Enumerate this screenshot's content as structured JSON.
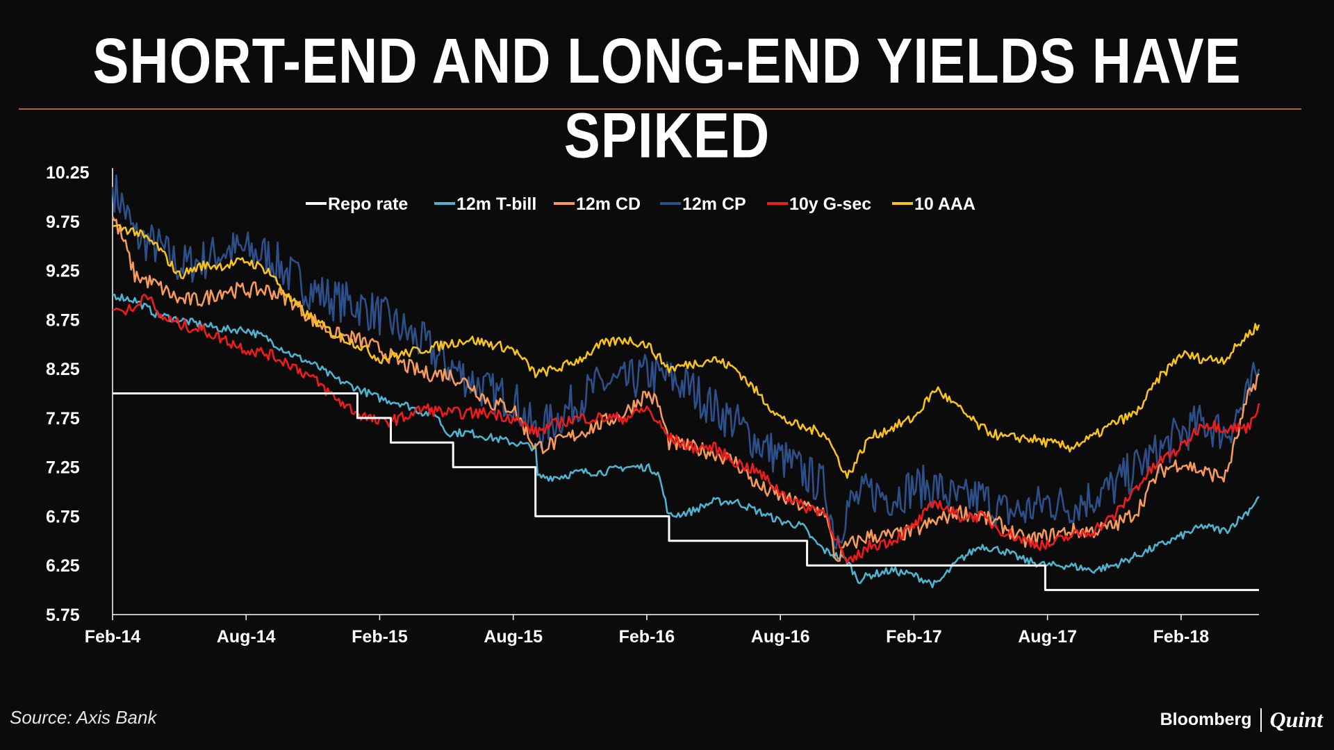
{
  "header": {
    "title": "SHORT-END AND LONG-END YIELDS HAVE SPIKED"
  },
  "footer": {
    "source": "Source: Axis Bank",
    "brand_left": "Bloomberg",
    "brand_right": "Quint"
  },
  "colors": {
    "background": "#0b0b0b",
    "rule": "#b55f3a",
    "axis": "#ffffff",
    "repo": "#ffffff",
    "tbill": "#4fb3cf",
    "cd": "#f59a5b",
    "cp": "#2d4f8a",
    "gsec": "#ee1c1c",
    "aaa": "#f7c21a"
  },
  "chart_data": {
    "type": "line",
    "title": "SHORT-END AND LONG-END YIELDS HAVE SPIKED",
    "xlabel": "",
    "ylabel": "",
    "ylim": [
      5.75,
      10.25
    ],
    "y_ticks": [
      "10.25",
      "9.75",
      "9.25",
      "8.75",
      "8.25",
      "7.75",
      "7.25",
      "6.75",
      "6.25",
      "5.75"
    ],
    "x_ticks": [
      "Feb-14",
      "Aug-14",
      "Feb-15",
      "Aug-15",
      "Feb-16",
      "Aug-16",
      "Feb-17",
      "Aug-17",
      "Feb-18"
    ],
    "x_range_months": [
      0,
      51.5
    ],
    "legend": "top",
    "series": [
      {
        "name": "Repo rate",
        "key": "repo",
        "step": true,
        "points": [
          [
            0,
            8.0
          ],
          [
            11,
            8.0
          ],
          [
            11,
            7.75
          ],
          [
            12.5,
            7.75
          ],
          [
            12.5,
            7.5
          ],
          [
            15.3,
            7.5
          ],
          [
            15.3,
            7.25
          ],
          [
            19,
            7.25
          ],
          [
            19,
            6.75
          ],
          [
            25,
            6.75
          ],
          [
            25,
            6.5
          ],
          [
            31.2,
            6.5
          ],
          [
            31.2,
            6.25
          ],
          [
            41.9,
            6.25
          ],
          [
            41.9,
            6.0
          ],
          [
            51.5,
            6.0
          ]
        ]
      },
      {
        "name": "12m T-bill",
        "key": "tbill",
        "points": [
          [
            0,
            9.0
          ],
          [
            1,
            8.95
          ],
          [
            2,
            8.8
          ],
          [
            3,
            8.75
          ],
          [
            4,
            8.7
          ],
          [
            5,
            8.65
          ],
          [
            6,
            8.65
          ],
          [
            7,
            8.55
          ],
          [
            8,
            8.4
          ],
          [
            9,
            8.3
          ],
          [
            10,
            8.15
          ],
          [
            11,
            8.05
          ],
          [
            12,
            7.95
          ],
          [
            13,
            7.9
          ],
          [
            14,
            7.8
          ],
          [
            14.5,
            7.8
          ],
          [
            15,
            7.6
          ],
          [
            16,
            7.6
          ],
          [
            17,
            7.55
          ],
          [
            18,
            7.5
          ],
          [
            19,
            7.45
          ],
          [
            19.1,
            7.15
          ],
          [
            20,
            7.15
          ],
          [
            21,
            7.2
          ],
          [
            22,
            7.2
          ],
          [
            23,
            7.25
          ],
          [
            24,
            7.25
          ],
          [
            24.5,
            7.2
          ],
          [
            25,
            6.75
          ],
          [
            26,
            6.8
          ],
          [
            27,
            6.9
          ],
          [
            28,
            6.9
          ],
          [
            29,
            6.8
          ],
          [
            30,
            6.7
          ],
          [
            31,
            6.65
          ],
          [
            31.5,
            6.5
          ],
          [
            32,
            6.4
          ],
          [
            33,
            6.3
          ],
          [
            33.5,
            6.1
          ],
          [
            34,
            6.15
          ],
          [
            35,
            6.2
          ],
          [
            36,
            6.15
          ],
          [
            37,
            6.05
          ],
          [
            38,
            6.3
          ],
          [
            39,
            6.45
          ],
          [
            40,
            6.4
          ],
          [
            41,
            6.3
          ],
          [
            42,
            6.25
          ],
          [
            43,
            6.25
          ],
          [
            44,
            6.2
          ],
          [
            45,
            6.25
          ],
          [
            46,
            6.35
          ],
          [
            47,
            6.45
          ],
          [
            48,
            6.55
          ],
          [
            49,
            6.65
          ],
          [
            50,
            6.6
          ],
          [
            51,
            6.8
          ],
          [
            51.5,
            6.95
          ]
        ]
      },
      {
        "name": "12m CD",
        "key": "cd",
        "points": [
          [
            0,
            9.8
          ],
          [
            0.5,
            9.55
          ],
          [
            1,
            9.2
          ],
          [
            2,
            9.1
          ],
          [
            3,
            8.95
          ],
          [
            4,
            8.95
          ],
          [
            5,
            9.05
          ],
          [
            6,
            9.05
          ],
          [
            7,
            9.05
          ],
          [
            8,
            8.95
          ],
          [
            9,
            8.75
          ],
          [
            10,
            8.6
          ],
          [
            11,
            8.55
          ],
          [
            12,
            8.45
          ],
          [
            13,
            8.3
          ],
          [
            14,
            8.2
          ],
          [
            15,
            8.2
          ],
          [
            16,
            8.1
          ],
          [
            17,
            7.9
          ],
          [
            18,
            7.85
          ],
          [
            19,
            7.45
          ],
          [
            20,
            7.5
          ],
          [
            21,
            7.6
          ],
          [
            22,
            7.7
          ],
          [
            23,
            7.8
          ],
          [
            24,
            8.0
          ],
          [
            24.5,
            7.9
          ],
          [
            25,
            7.5
          ],
          [
            26,
            7.45
          ],
          [
            27,
            7.4
          ],
          [
            28,
            7.3
          ],
          [
            29,
            7.05
          ],
          [
            30,
            6.95
          ],
          [
            31,
            6.85
          ],
          [
            32,
            6.8
          ],
          [
            32.5,
            6.3
          ],
          [
            33,
            6.45
          ],
          [
            34,
            6.55
          ],
          [
            35,
            6.55
          ],
          [
            36,
            6.6
          ],
          [
            37,
            6.7
          ],
          [
            38,
            6.8
          ],
          [
            39,
            6.75
          ],
          [
            40,
            6.65
          ],
          [
            41,
            6.5
          ],
          [
            42,
            6.55
          ],
          [
            43,
            6.6
          ],
          [
            44,
            6.6
          ],
          [
            45,
            6.65
          ],
          [
            46,
            6.8
          ],
          [
            47,
            7.2
          ],
          [
            48,
            7.3
          ],
          [
            49,
            7.2
          ],
          [
            50,
            7.15
          ],
          [
            51,
            7.95
          ],
          [
            51.5,
            8.2
          ]
        ]
      },
      {
        "name": "12m CP",
        "key": "cp",
        "points": [
          [
            0,
            10.1
          ],
          [
            0.5,
            9.9
          ],
          [
            1,
            9.6
          ],
          [
            2,
            9.5
          ],
          [
            3,
            9.3
          ],
          [
            4,
            9.35
          ],
          [
            5,
            9.45
          ],
          [
            6,
            9.45
          ],
          [
            7,
            9.4
          ],
          [
            8,
            9.2
          ],
          [
            9,
            9.05
          ],
          [
            10,
            8.95
          ],
          [
            11,
            8.9
          ],
          [
            12,
            8.8
          ],
          [
            13,
            8.65
          ],
          [
            14,
            8.5
          ],
          [
            15,
            8.3
          ],
          [
            16,
            8.15
          ],
          [
            17,
            8.0
          ],
          [
            18,
            7.95
          ],
          [
            19,
            7.6
          ],
          [
            20,
            7.75
          ],
          [
            21,
            7.95
          ],
          [
            22,
            8.1
          ],
          [
            23,
            8.1
          ],
          [
            24,
            8.2
          ],
          [
            25,
            8.15
          ],
          [
            26,
            8.05
          ],
          [
            27,
            7.85
          ],
          [
            28,
            7.7
          ],
          [
            29,
            7.5
          ],
          [
            30,
            7.35
          ],
          [
            31,
            7.2
          ],
          [
            32,
            7.05
          ],
          [
            32.5,
            6.5
          ],
          [
            33,
            6.85
          ],
          [
            34,
            7.0
          ],
          [
            35,
            6.95
          ],
          [
            36,
            7.05
          ],
          [
            37,
            7.05
          ],
          [
            38,
            6.9
          ],
          [
            39,
            6.95
          ],
          [
            40,
            6.8
          ],
          [
            41,
            6.8
          ],
          [
            42,
            6.9
          ],
          [
            43,
            6.85
          ],
          [
            44,
            6.95
          ],
          [
            45,
            7.05
          ],
          [
            46,
            7.25
          ],
          [
            47,
            7.4
          ],
          [
            48,
            7.6
          ],
          [
            49,
            7.7
          ],
          [
            50,
            7.6
          ],
          [
            51,
            7.95
          ],
          [
            51.5,
            8.25
          ]
        ]
      },
      {
        "name": "10y G-sec",
        "key": "gsec",
        "points": [
          [
            0,
            8.85
          ],
          [
            1,
            8.85
          ],
          [
            1.5,
            9.05
          ],
          [
            2,
            8.8
          ],
          [
            3,
            8.7
          ],
          [
            4,
            8.65
          ],
          [
            5,
            8.55
          ],
          [
            6,
            8.45
          ],
          [
            7,
            8.4
          ],
          [
            8,
            8.3
          ],
          [
            9,
            8.15
          ],
          [
            10,
            7.95
          ],
          [
            11,
            7.8
          ],
          [
            12,
            7.7
          ],
          [
            13,
            7.75
          ],
          [
            14,
            7.85
          ],
          [
            15,
            7.8
          ],
          [
            16,
            7.8
          ],
          [
            17,
            7.8
          ],
          [
            18,
            7.75
          ],
          [
            19,
            7.6
          ],
          [
            20,
            7.7
          ],
          [
            21,
            7.75
          ],
          [
            22,
            7.75
          ],
          [
            23,
            7.75
          ],
          [
            24,
            7.85
          ],
          [
            25,
            7.55
          ],
          [
            26,
            7.45
          ],
          [
            27,
            7.45
          ],
          [
            28,
            7.3
          ],
          [
            29,
            7.2
          ],
          [
            30,
            7.0
          ],
          [
            31,
            6.85
          ],
          [
            32,
            6.8
          ],
          [
            33,
            6.25
          ],
          [
            34,
            6.45
          ],
          [
            35,
            6.5
          ],
          [
            36,
            6.65
          ],
          [
            37,
            6.9
          ],
          [
            38,
            6.75
          ],
          [
            39,
            6.75
          ],
          [
            40,
            6.6
          ],
          [
            41,
            6.5
          ],
          [
            42,
            6.45
          ],
          [
            43,
            6.55
          ],
          [
            44,
            6.6
          ],
          [
            45,
            6.75
          ],
          [
            46,
            7.05
          ],
          [
            47,
            7.3
          ],
          [
            48,
            7.45
          ],
          [
            49,
            7.7
          ],
          [
            50,
            7.65
          ],
          [
            51,
            7.65
          ],
          [
            51.5,
            7.9
          ]
        ]
      },
      {
        "name": "10 AAA",
        "key": "aaa",
        "points": [
          [
            0,
            9.7
          ],
          [
            1,
            9.65
          ],
          [
            2,
            9.5
          ],
          [
            3,
            9.2
          ],
          [
            4,
            9.3
          ],
          [
            5,
            9.3
          ],
          [
            6,
            9.35
          ],
          [
            7,
            9.25
          ],
          [
            8,
            8.95
          ],
          [
            9,
            8.75
          ],
          [
            10,
            8.6
          ],
          [
            11,
            8.5
          ],
          [
            12,
            8.35
          ],
          [
            13,
            8.4
          ],
          [
            14,
            8.45
          ],
          [
            15,
            8.5
          ],
          [
            16,
            8.55
          ],
          [
            17,
            8.5
          ],
          [
            18,
            8.45
          ],
          [
            19,
            8.2
          ],
          [
            20,
            8.25
          ],
          [
            21,
            8.35
          ],
          [
            22,
            8.5
          ],
          [
            23,
            8.55
          ],
          [
            24,
            8.5
          ],
          [
            25,
            8.25
          ],
          [
            26,
            8.3
          ],
          [
            27,
            8.35
          ],
          [
            28,
            8.25
          ],
          [
            29,
            8.0
          ],
          [
            30,
            7.75
          ],
          [
            31,
            7.65
          ],
          [
            32,
            7.6
          ],
          [
            33,
            7.15
          ],
          [
            34,
            7.55
          ],
          [
            35,
            7.65
          ],
          [
            36,
            7.75
          ],
          [
            37,
            8.05
          ],
          [
            38,
            7.85
          ],
          [
            39,
            7.65
          ],
          [
            40,
            7.55
          ],
          [
            41,
            7.55
          ],
          [
            42,
            7.5
          ],
          [
            43,
            7.45
          ],
          [
            44,
            7.55
          ],
          [
            45,
            7.7
          ],
          [
            46,
            7.8
          ],
          [
            47,
            8.15
          ],
          [
            48,
            8.4
          ],
          [
            49,
            8.35
          ],
          [
            50,
            8.35
          ],
          [
            51,
            8.6
          ],
          [
            51.5,
            8.7
          ]
        ]
      }
    ]
  }
}
